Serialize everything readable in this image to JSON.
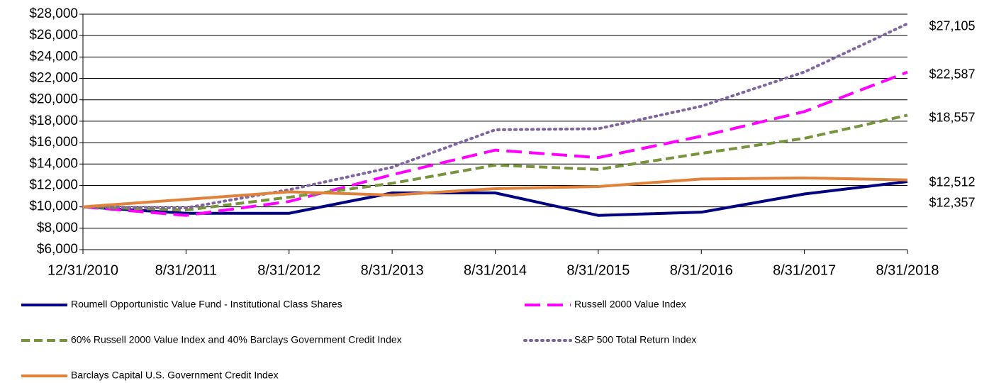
{
  "chart_data": {
    "type": "line",
    "categories": [
      "12/31/2010",
      "8/31/2011",
      "8/31/2012",
      "8/31/2013",
      "8/31/2014",
      "8/31/2015",
      "8/31/2016",
      "8/31/2017",
      "8/31/2018"
    ],
    "ylim": [
      6000,
      28000
    ],
    "yticks": [
      {
        "value": 6000,
        "label": "$6,000"
      },
      {
        "value": 8000,
        "label": "$8,000"
      },
      {
        "value": 10000,
        "label": "$10,000"
      },
      {
        "value": 12000,
        "label": "$12,000"
      },
      {
        "value": 14000,
        "label": "$14,000"
      },
      {
        "value": 16000,
        "label": "$16,000"
      },
      {
        "value": 18000,
        "label": "$18,000"
      },
      {
        "value": 20000,
        "label": "$20,000"
      },
      {
        "value": 22000,
        "label": "$22,000"
      },
      {
        "value": 24000,
        "label": "$24,000"
      },
      {
        "value": 26000,
        "label": "$26,000"
      },
      {
        "value": 28000,
        "label": "$28,000"
      }
    ],
    "grid": true,
    "series": [
      {
        "name": "Roumell Opportunistic Value Fund - Institutional Class Shares",
        "color": "#000080",
        "dash": "solid",
        "values": [
          10000,
          9400,
          9400,
          11300,
          11300,
          9200,
          9500,
          11200,
          12357
        ],
        "value_labels": [
          null,
          null,
          null,
          null,
          null,
          null,
          null,
          null,
          "$12,357"
        ]
      },
      {
        "name": "Russell 2000 Value Index",
        "color": "#ff00ff",
        "dash": "dash",
        "values": [
          10000,
          9200,
          10500,
          13000,
          15300,
          14600,
          16600,
          18900,
          22587
        ],
        "value_labels": [
          null,
          null,
          null,
          null,
          null,
          null,
          null,
          null,
          "$22,587"
        ]
      },
      {
        "name": "60% Russell 2000 Value Index and 40% Barclays Government Credit Index",
        "color": "#77933c",
        "dash": "shortdash",
        "values": [
          10000,
          9700,
          10900,
          12200,
          13900,
          13500,
          15000,
          16400,
          18557
        ],
        "value_labels": [
          null,
          null,
          null,
          null,
          null,
          null,
          null,
          null,
          "$18,557"
        ]
      },
      {
        "name": "S&P 500 Total Return Index",
        "color": "#8064a2",
        "dash": "dot",
        "values": [
          10000,
          9900,
          11600,
          13700,
          17200,
          17300,
          19400,
          22600,
          27105
        ],
        "value_labels": [
          null,
          null,
          null,
          null,
          null,
          null,
          null,
          null,
          "$27,105"
        ]
      },
      {
        "name": "Barclays Capital U.S. Government Credit Index",
        "color": "#e0823a",
        "dash": "solid",
        "values": [
          10000,
          10700,
          11400,
          11100,
          11700,
          11900,
          12600,
          12700,
          12512
        ],
        "value_labels": [
          null,
          null,
          null,
          null,
          null,
          null,
          null,
          null,
          "$12,512"
        ]
      }
    ]
  }
}
